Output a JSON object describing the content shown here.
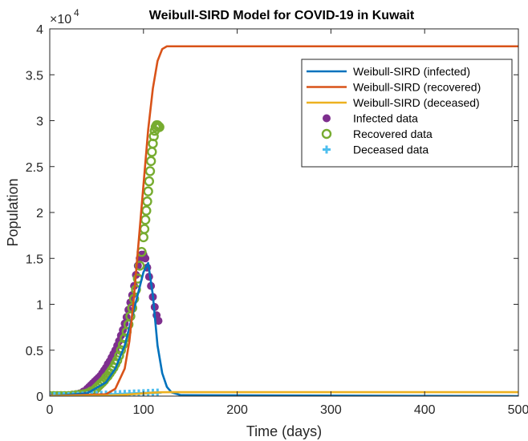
{
  "chart_data": {
    "type": "line",
    "title": "Weibull-SIRD Model for COVID-19 in Kuwait",
    "xlabel": "Time (days)",
    "ylabel": "Population",
    "y_exponent_label": "×10",
    "y_exponent_power": "4",
    "xlim": [
      0,
      500
    ],
    "ylim": [
      0,
      4
    ],
    "y_multiplier": 10000,
    "x_ticks": [
      0,
      100,
      200,
      300,
      400,
      500
    ],
    "x_tick_labels": [
      "0",
      "100",
      "200",
      "300",
      "400",
      "500"
    ],
    "y_ticks": [
      0,
      0.5,
      1,
      1.5,
      2,
      2.5,
      3,
      3.5,
      4
    ],
    "y_tick_labels": [
      "0",
      "0.5",
      "1",
      "1.5",
      "2",
      "2.5",
      "3",
      "3.5",
      "4"
    ],
    "grid": false,
    "legend_position": "top-right",
    "series": [
      {
        "name": "Weibull-SIRD (infected)",
        "kind": "line",
        "color": "#0072BD",
        "x": [
          0,
          40,
          60,
          70,
          80,
          90,
          100,
          105,
          110,
          115,
          120,
          125,
          130,
          140,
          500
        ],
        "y": [
          0,
          0.03,
          0.15,
          0.3,
          0.55,
          0.95,
          1.35,
          1.45,
          1.1,
          0.55,
          0.25,
          0.1,
          0.04,
          0.01,
          0
        ]
      },
      {
        "name": "Weibull-SIRD (recovered)",
        "kind": "line",
        "color": "#D95319",
        "x": [
          0,
          60,
          70,
          80,
          85,
          90,
          95,
          100,
          105,
          110,
          115,
          120,
          125,
          130,
          140,
          500
        ],
        "y": [
          0,
          0.02,
          0.08,
          0.3,
          0.6,
          1.1,
          1.7,
          2.3,
          2.9,
          3.35,
          3.65,
          3.78,
          3.81,
          3.81,
          3.81,
          3.81
        ]
      },
      {
        "name": "Weibull-SIRD (deceased)",
        "kind": "line",
        "color": "#EDB120",
        "x": [
          0,
          60,
          80,
          100,
          110,
          120,
          130,
          500
        ],
        "y": [
          0,
          0.005,
          0.015,
          0.03,
          0.038,
          0.042,
          0.043,
          0.043
        ]
      },
      {
        "name": "Infected data",
        "kind": "filled-circle",
        "color": "#7E2F8E",
        "x": [
          0,
          4,
          8,
          12,
          16,
          20,
          24,
          28,
          32,
          36,
          40,
          42,
          44,
          46,
          48,
          50,
          52,
          54,
          56,
          58,
          60,
          62,
          64,
          66,
          68,
          70,
          72,
          74,
          76,
          78,
          80,
          82,
          84,
          86,
          88,
          90,
          92,
          94,
          96,
          98,
          100,
          102,
          104,
          106,
          108,
          110,
          112,
          114,
          116
        ],
        "y": [
          0,
          0,
          0,
          0,
          0.005,
          0.01,
          0.015,
          0.02,
          0.03,
          0.05,
          0.08,
          0.1,
          0.12,
          0.14,
          0.16,
          0.18,
          0.2,
          0.22,
          0.25,
          0.28,
          0.31,
          0.35,
          0.38,
          0.42,
          0.46,
          0.5,
          0.55,
          0.6,
          0.66,
          0.72,
          0.79,
          0.86,
          0.94,
          1.02,
          1.1,
          1.2,
          1.32,
          1.42,
          1.5,
          1.54,
          1.54,
          1.5,
          1.4,
          1.3,
          1.2,
          1.08,
          0.97,
          0.88,
          0.82
        ]
      },
      {
        "name": "Recovered data",
        "kind": "open-circle",
        "color": "#77AC30",
        "x": [
          0,
          4,
          8,
          12,
          16,
          20,
          24,
          28,
          32,
          36,
          40,
          44,
          48,
          50,
          52,
          54,
          56,
          58,
          60,
          62,
          64,
          66,
          68,
          70,
          72,
          74,
          76,
          78,
          80,
          82,
          84,
          86,
          88,
          90,
          92,
          94,
          96,
          98,
          100,
          101,
          102,
          103,
          104,
          105,
          106,
          107,
          108,
          109,
          110,
          111,
          112,
          113,
          114,
          115,
          116,
          117
        ],
        "y": [
          0,
          0,
          0,
          0,
          0,
          0,
          0.005,
          0.01,
          0.015,
          0.02,
          0.03,
          0.05,
          0.07,
          0.09,
          0.11,
          0.13,
          0.15,
          0.17,
          0.2,
          0.22,
          0.25,
          0.28,
          0.31,
          0.35,
          0.39,
          0.44,
          0.5,
          0.56,
          0.63,
          0.7,
          0.78,
          0.87,
          0.96,
          1.06,
          1.16,
          1.28,
          1.42,
          1.57,
          1.73,
          1.82,
          1.92,
          2.02,
          2.12,
          2.23,
          2.34,
          2.45,
          2.56,
          2.66,
          2.75,
          2.83,
          2.89,
          2.93,
          2.95,
          2.95,
          2.94,
          2.93
        ]
      },
      {
        "name": "Deceased data",
        "kind": "plus",
        "color": "#4DBEEE",
        "x": [
          0,
          5,
          10,
          15,
          20,
          25,
          30,
          35,
          40,
          45,
          50,
          55,
          60,
          65,
          70,
          75,
          80,
          85,
          90,
          95,
          100,
          105,
          110,
          115
        ],
        "y": [
          0,
          0,
          0,
          0,
          0,
          0.002,
          0.004,
          0.006,
          0.008,
          0.01,
          0.012,
          0.014,
          0.016,
          0.018,
          0.02,
          0.022,
          0.024,
          0.026,
          0.028,
          0.03,
          0.032,
          0.034,
          0.036,
          0.038
        ]
      }
    ]
  }
}
